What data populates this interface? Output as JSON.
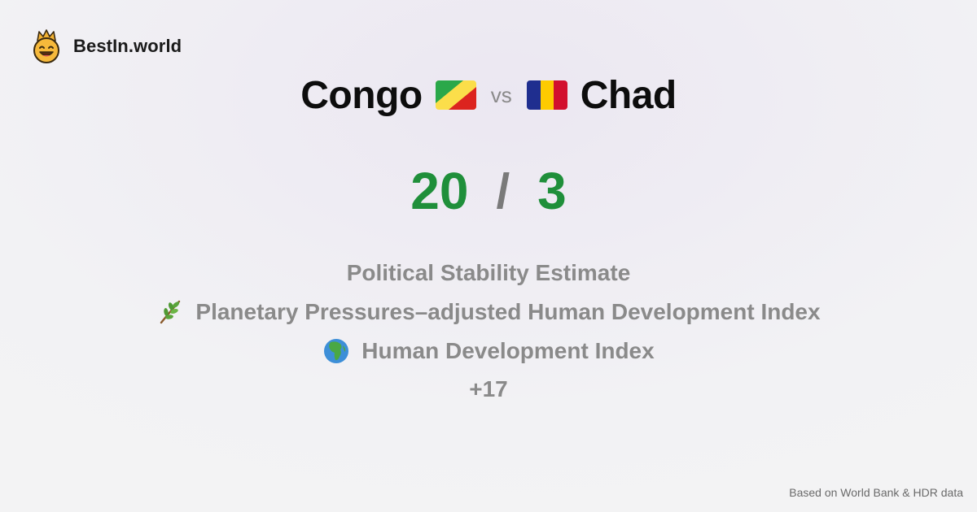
{
  "brand": {
    "name": "BestIn.world",
    "logo_icon": "smiling-face-with-crown-icon"
  },
  "comparison": {
    "left_country": "Congo",
    "left_flag_icon": "congo-flag-icon",
    "vs_label": "vs",
    "right_country": "Chad",
    "right_flag_icon": "chad-flag-icon"
  },
  "score": {
    "left": "20",
    "separator": "/",
    "right": "3",
    "color": "#1f8f3a"
  },
  "metrics": [
    {
      "label": "Political Stability Estimate",
      "icon": ""
    },
    {
      "label": "Planetary Pressures–adjusted Human Development Index",
      "icon": "herb-branch-icon"
    },
    {
      "label": "Human Development Index",
      "icon": "globe-africa-icon"
    }
  ],
  "more_label": "+17",
  "footer": {
    "source": "Based on World Bank & HDR data"
  }
}
